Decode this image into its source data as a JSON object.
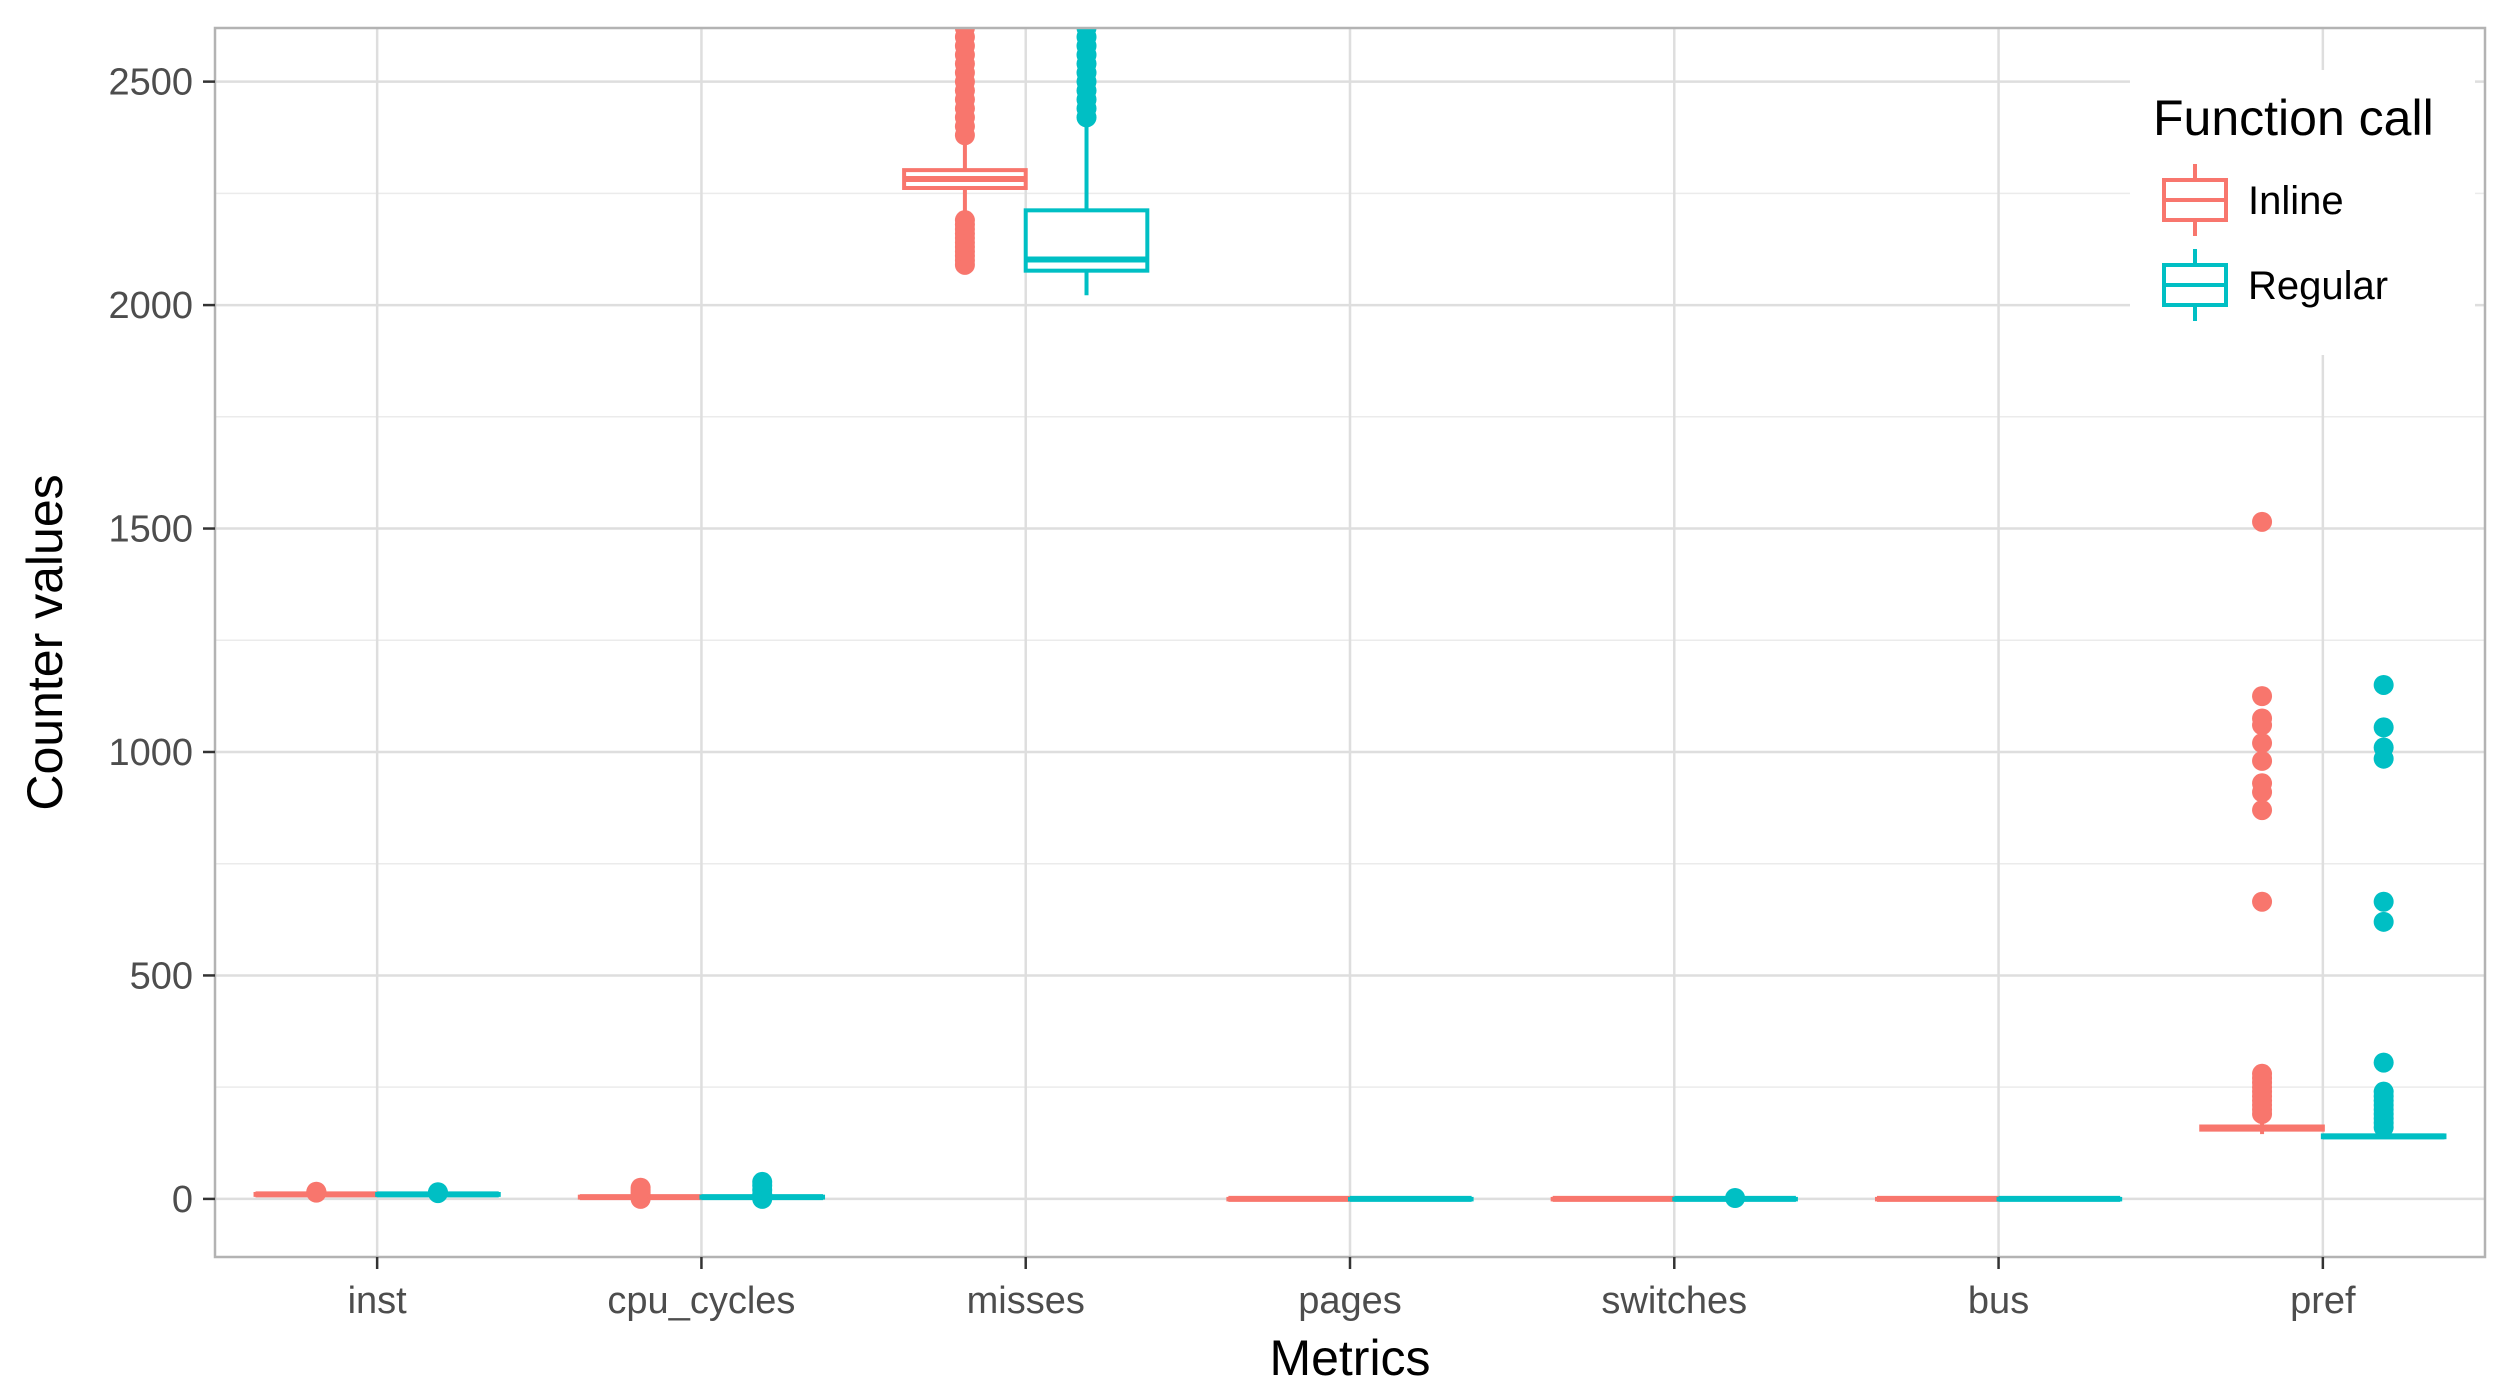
{
  "chart_data": {
    "type": "boxplot",
    "xlabel": "Metrics",
    "ylabel": "Counter values",
    "ylim": [
      -130,
      2620
    ],
    "yticks": [
      0,
      500,
      1000,
      1500,
      2000,
      2500
    ],
    "categories": [
      "inst",
      "cpu_cycles",
      "misses",
      "pages",
      "switches",
      "bus",
      "pref"
    ],
    "grid": true,
    "legend": {
      "title": "Function call",
      "position": "top-right",
      "entries": [
        "Inline",
        "Regular"
      ]
    },
    "series": [
      {
        "name": "Inline",
        "color": "#F8766D",
        "boxes": [
          {
            "category": "inst",
            "lower_whisker": 8,
            "q1": 9,
            "median": 10,
            "q3": 11,
            "upper_whisker": 12,
            "outliers": [
              14,
              15,
              16
            ]
          },
          {
            "category": "cpu_cycles",
            "lower_whisker": 2,
            "q1": 3,
            "median": 4,
            "q3": 5,
            "upper_whisker": 6,
            "outliers": [
              0,
              10,
              15,
              20,
              25
            ]
          },
          {
            "category": "misses",
            "lower_whisker": 2200,
            "q1": 2262,
            "median": 2282,
            "q3": 2302,
            "upper_whisker": 2370,
            "outliers": [
              2090,
              2100,
              2110,
              2120,
              2130,
              2140,
              2150,
              2160,
              2170,
              2180,
              2190,
              2380,
              2400,
              2420,
              2440,
              2460,
              2480,
              2500,
              2520,
              2540,
              2560,
              2580,
              2600,
              2620
            ]
          },
          {
            "category": "pages",
            "lower_whisker": 0,
            "q1": 0,
            "median": 0,
            "q3": 0,
            "upper_whisker": 0,
            "outliers": []
          },
          {
            "category": "switches",
            "lower_whisker": 0,
            "q1": 0,
            "median": 0,
            "q3": 0,
            "upper_whisker": 0,
            "outliers": []
          },
          {
            "category": "bus",
            "lower_whisker": 0,
            "q1": 0,
            "median": 0,
            "q3": 0,
            "upper_whisker": 0,
            "outliers": []
          },
          {
            "category": "pref",
            "lower_whisker": 145,
            "q1": 155,
            "median": 158,
            "q3": 162,
            "upper_whisker": 175,
            "outliers": [
              190,
              200,
              210,
              220,
              230,
              240,
              250,
              260,
              270,
              280,
              665,
              870,
              910,
              930,
              980,
              1020,
              1060,
              1075,
              1125,
              1515
            ]
          }
        ]
      },
      {
        "name": "Regular",
        "color": "#00BFC4",
        "boxes": [
          {
            "category": "inst",
            "lower_whisker": 8,
            "q1": 9,
            "median": 10,
            "q3": 11,
            "upper_whisker": 12,
            "outliers": [
              13,
              15
            ]
          },
          {
            "category": "cpu_cycles",
            "lower_whisker": 2,
            "q1": 3,
            "median": 4,
            "q3": 5,
            "upper_whisker": 6,
            "outliers": [
              0,
              10,
              20,
              30,
              38
            ]
          },
          {
            "category": "misses",
            "lower_whisker": 2022,
            "q1": 2077,
            "median": 2102,
            "q3": 2212,
            "upper_whisker": 2400,
            "outliers": [
              2420,
              2440,
              2460,
              2480,
              2500,
              2520,
              2540,
              2560,
              2580,
              2600,
              2620
            ]
          },
          {
            "category": "pages",
            "lower_whisker": 0,
            "q1": 0,
            "median": 0,
            "q3": 0,
            "upper_whisker": 0,
            "outliers": []
          },
          {
            "category": "switches",
            "lower_whisker": 0,
            "q1": 0,
            "median": 0,
            "q3": 0,
            "upper_whisker": 0,
            "outliers": [
              2
            ]
          },
          {
            "category": "bus",
            "lower_whisker": 0,
            "q1": 0,
            "median": 0,
            "q3": 0,
            "upper_whisker": 0,
            "outliers": []
          },
          {
            "category": "pref",
            "lower_whisker": 135,
            "q1": 138,
            "median": 140,
            "q3": 142,
            "upper_whisker": 150,
            "outliers": [
              160,
              170,
              180,
              190,
              200,
              210,
              220,
              230,
              240,
              305,
              620,
              665,
              985,
              1010,
              1055,
              1150
            ]
          }
        ]
      }
    ]
  }
}
